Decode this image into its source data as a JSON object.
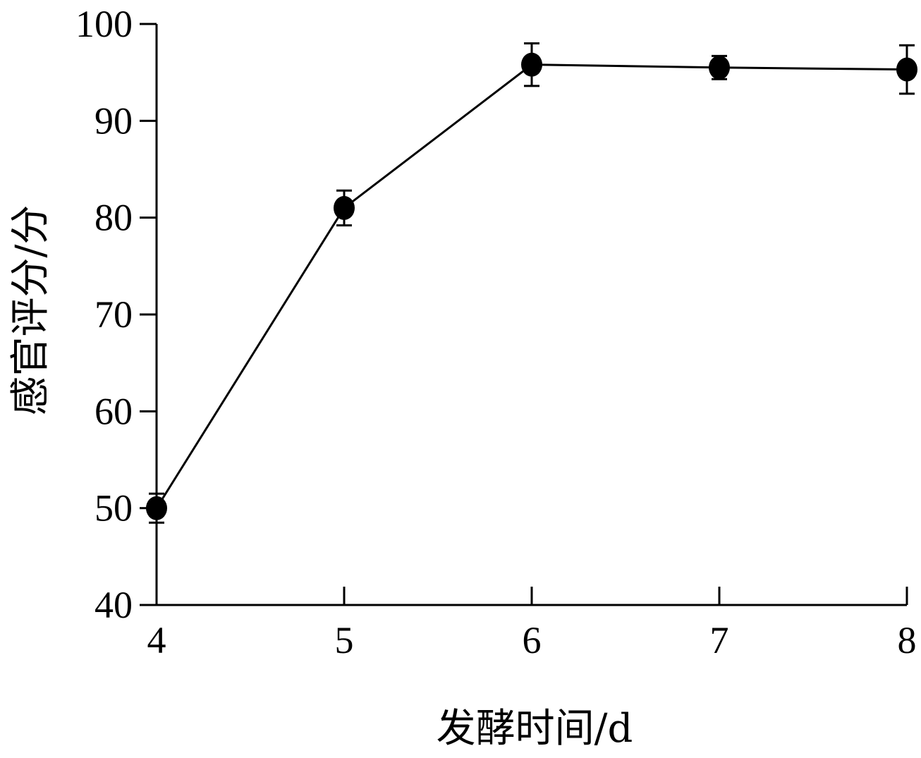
{
  "chart_data": {
    "type": "line",
    "xlabel": "发酵时间/d",
    "ylabel": "感官评分/分",
    "x": [
      4,
      5,
      6,
      7,
      8
    ],
    "xticks": [
      "4",
      "5",
      "6",
      "7",
      "8"
    ],
    "yticks": [
      "40",
      "50",
      "60",
      "70",
      "80",
      "90",
      "100"
    ],
    "xlim": [
      4,
      8
    ],
    "ylim": [
      40,
      100
    ],
    "grid": false,
    "series": [
      {
        "values": [
          50.0,
          81.0,
          95.8,
          95.5,
          95.3
        ],
        "error": [
          1.5,
          1.8,
          2.2,
          1.2,
          2.5
        ],
        "marker": "circle",
        "color": "#000000"
      }
    ]
  }
}
